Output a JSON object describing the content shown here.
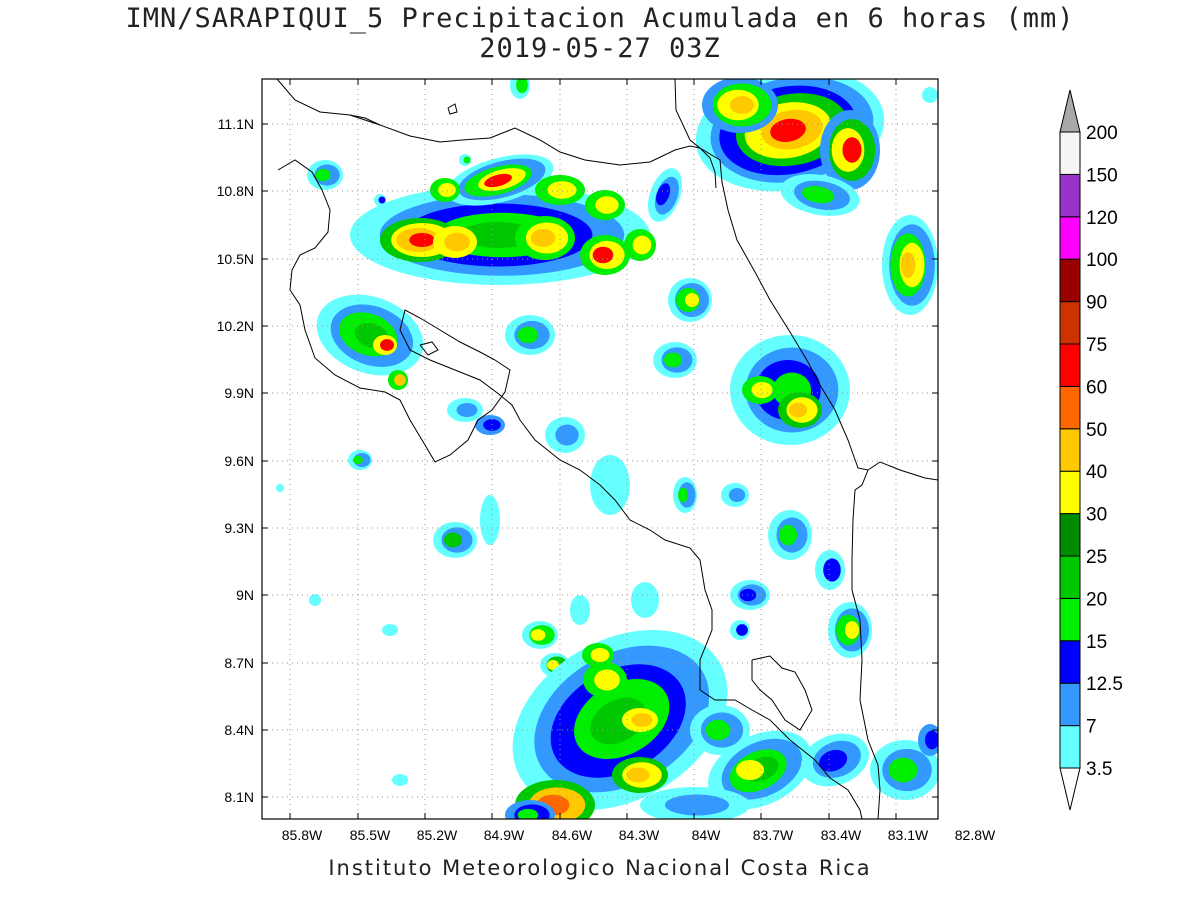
{
  "title_line1": "IMN/SARAPIQUI_5 Precipitacion Acumulada en 6 horas (mm)",
  "title_line2": "2019-05-27 03Z",
  "footer": "Instituto Meteorologico Nacional Costa Rica",
  "map": {
    "lon_range": [
      -86.0,
      -83.0
    ],
    "lat_range": [
      8.0,
      11.3
    ],
    "x_ticks": [
      "85.8W",
      "85.5W",
      "85.2W",
      "84.9W",
      "84.6W",
      "84.3W",
      "84W",
      "83.7W",
      "83.4W",
      "83.1W",
      "82.8W"
    ],
    "y_ticks": [
      "11.1N",
      "10.8N",
      "10.5N",
      "10.2N",
      "9.9N",
      "9.6N",
      "9.3N",
      "9N",
      "8.7N",
      "8.4N",
      "8.1N"
    ],
    "grid": true,
    "grid_style": "dotted"
  },
  "colorbar": {
    "position": "right",
    "labels": [
      "3.5",
      "7",
      "12.5",
      "15",
      "20",
      "25",
      "30",
      "40",
      "50",
      "60",
      "75",
      "90",
      "100",
      "120",
      "150",
      "200"
    ],
    "colors": [
      "#66ffff",
      "#3399ff",
      "#0000ff",
      "#00ee00",
      "#00c800",
      "#008c00",
      "#ffff00",
      "#ffc800",
      "#ff6600",
      "#ff0000",
      "#cc3300",
      "#990000",
      "#ff00ff",
      "#9933cc",
      "#f5f5f5"
    ],
    "arrow_top_color": "#a9a9a9",
    "arrow_bottom_color": "#ffffff"
  },
  "legend_colors": {
    "lt": "#66ffff",
    "lb": "#3399ff",
    "b": "#0000ff",
    "g1": "#00ee00",
    "g2": "#00c800",
    "g3": "#008c00",
    "y": "#ffff00",
    "o": "#ffc800",
    "do": "#ff6600",
    "r": "#ff0000"
  }
}
